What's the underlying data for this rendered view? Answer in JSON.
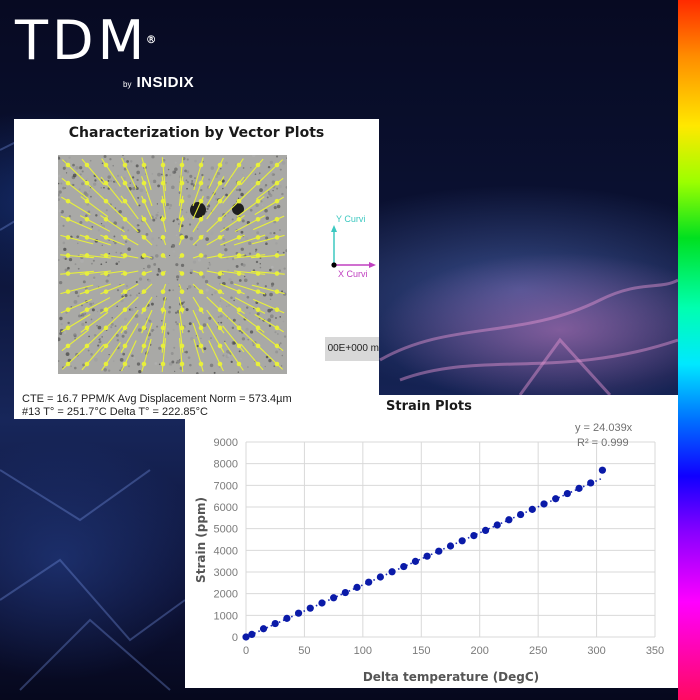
{
  "logo": {
    "main": "TDM",
    "registered": "®",
    "by": "by",
    "brand": "INSIDIX"
  },
  "vector_panel": {
    "title": "Characterization by Vector Plots",
    "axis_y_label": "Y Curvi",
    "axis_x_label": "X Curvi",
    "scale_text": "00E+000 m",
    "caption_line1": "CTE = 16.7 PPM/K Avg Displacement Norm = 573.4µm",
    "caption_line2": "#13 T° = 251.7°C  Delta T° = 222.85°C",
    "colors": {
      "arrow": "#e8f03a",
      "y_axis": "#3cc8c0",
      "x_axis": "#c040c0"
    }
  },
  "strain_panel": {
    "title": "Strain Plots",
    "trend_equation": "y = 24.039x",
    "trend_r2": "R² = 0.999",
    "marker_color": "#0a1aa8"
  },
  "chart_data": {
    "type": "scatter",
    "title": "Strain Plots",
    "xlabel": "Delta temperature (DegC)",
    "ylabel": "Strain (ppm)",
    "xlim": [
      0,
      350
    ],
    "ylim": [
      0,
      9000
    ],
    "xticks": [
      0,
      50,
      100,
      150,
      200,
      250,
      300,
      350
    ],
    "yticks": [
      0,
      1000,
      2000,
      3000,
      4000,
      5000,
      6000,
      7000,
      8000,
      9000
    ],
    "grid": true,
    "legend": null,
    "trendline": {
      "type": "linear",
      "equation": "y = 24.039x",
      "slope": 24.039,
      "r2": 0.999,
      "style": "dotted"
    },
    "series": [
      {
        "name": "Strain",
        "x": [
          0,
          5,
          15,
          25,
          35,
          45,
          55,
          65,
          75,
          85,
          95,
          105,
          115,
          125,
          135,
          145,
          155,
          165,
          175,
          185,
          195,
          205,
          215,
          225,
          235,
          245,
          255,
          265,
          275,
          285,
          295,
          305
        ],
        "y": [
          0,
          120,
          380,
          620,
          860,
          1100,
          1330,
          1570,
          1810,
          2050,
          2290,
          2530,
          2770,
          3010,
          3250,
          3490,
          3730,
          3960,
          4200,
          4440,
          4680,
          4920,
          5170,
          5410,
          5650,
          5890,
          6140,
          6380,
          6620,
          6860,
          7110,
          7700
        ]
      }
    ]
  }
}
